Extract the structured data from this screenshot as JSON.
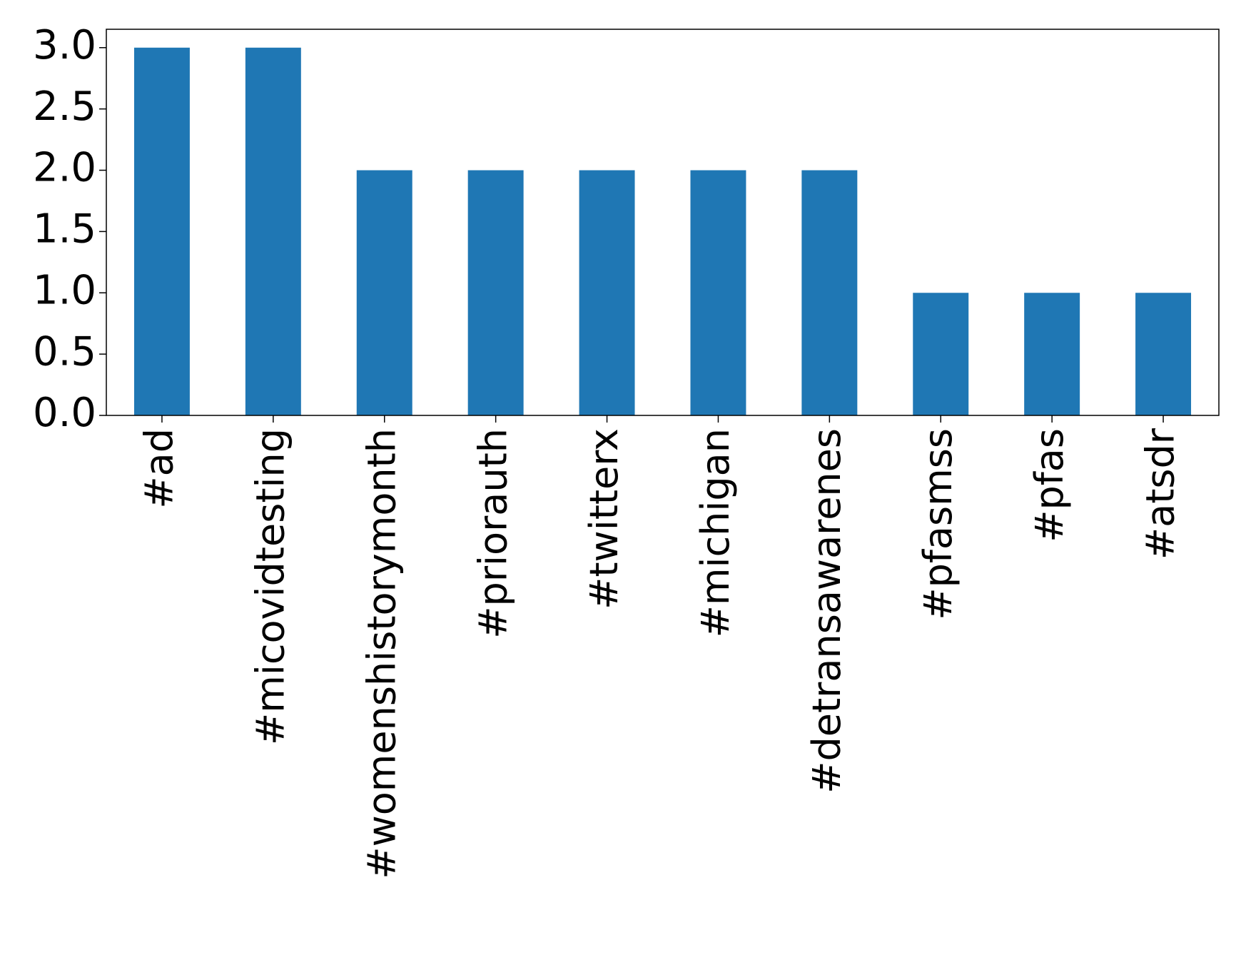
{
  "chart_data": {
    "type": "bar",
    "categories": [
      "#ad",
      "#micovidtesting",
      "#womenshistorymonth",
      "#priorauth",
      "#twitterx",
      "#michigan",
      "#detransawarenes",
      "#pfasmss",
      "#pfas",
      "#atsdr"
    ],
    "values": [
      3,
      3,
      2,
      2,
      2,
      2,
      2,
      1,
      1,
      1
    ],
    "color": "#1f77b4",
    "ylim": [
      0,
      3.15
    ],
    "yticks": [
      {
        "value": 0,
        "label": "0.0"
      },
      0.5,
      {
        "value": 1,
        "label": "1.0"
      },
      1.5,
      {
        "value": 2,
        "label": "2.0"
      },
      2.5,
      {
        "value": 3,
        "label": "3.0"
      }
    ],
    "grid": false
  }
}
